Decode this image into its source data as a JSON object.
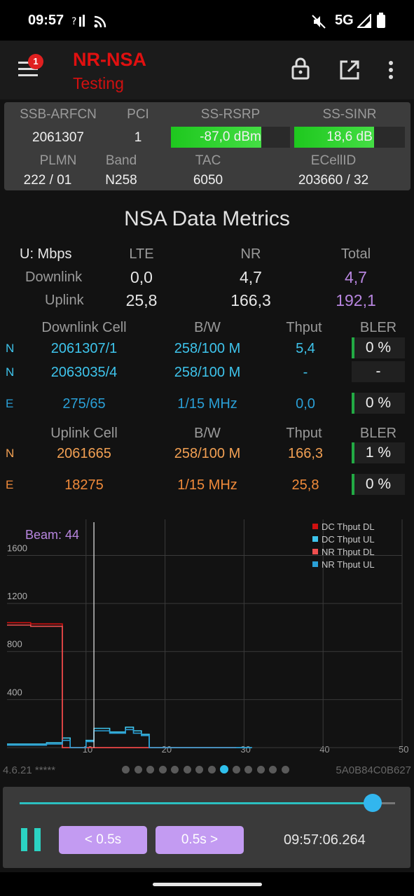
{
  "status_bar": {
    "time": "09:57",
    "network": "5G",
    "icons": [
      "signal-question-icon",
      "cast-icon",
      "mute-icon",
      "cell-signal-icon",
      "battery-icon"
    ]
  },
  "app_bar": {
    "title": "NR-NSA",
    "subtitle": "Testing",
    "menu_badge": "1",
    "icons": [
      "menu-icon",
      "lock-icon",
      "open-external-icon",
      "more-vert-icon"
    ]
  },
  "cell_info": {
    "labels": {
      "ssb_arfcn": "SSB-ARFCN",
      "pci": "PCI",
      "ss_rsrp": "SS-RSRP",
      "ss_sinr": "SS-SINR",
      "plmn": "PLMN",
      "band": "Band",
      "tac": "TAC",
      "ecellid": "ECellID"
    },
    "values": {
      "ssb_arfcn": "2061307",
      "pci": "1",
      "ss_rsrp": "-87,0 dBm",
      "ss_sinr": "18,6 dB",
      "plmn": "222 / 01",
      "band": "N258",
      "tac": "6050",
      "ecellid": "203660 / 32"
    },
    "rsrp_level": 0.76,
    "sinr_level": 0.72
  },
  "metrics": {
    "title": "NSA Data Metrics",
    "unit_label": "U: Mbps",
    "headers": [
      "LTE",
      "NR",
      "Total"
    ],
    "downlink": {
      "label": "Downlink",
      "lte": "0,0",
      "nr": "4,7",
      "total": "4,7"
    },
    "uplink": {
      "label": "Uplink",
      "lte": "25,8",
      "nr": "166,3",
      "total": "192,1"
    }
  },
  "downlink_cells": {
    "headers": [
      "Downlink Cell",
      "B/W",
      "Thput",
      "BLER"
    ],
    "rows": [
      {
        "type": "N",
        "cell": "2061307/1",
        "bw": "258/100 M",
        "thput": "5,4",
        "bler": "0 %"
      },
      {
        "type": "N",
        "cell": "2063035/4",
        "bw": "258/100 M",
        "thput": "-",
        "bler": "-"
      },
      {
        "type": "E",
        "cell": "275/65",
        "bw": "1/15 MHz",
        "thput": "0,0",
        "bler": "0 %"
      }
    ]
  },
  "uplink_cells": {
    "headers": [
      "Uplink Cell",
      "B/W",
      "Thput",
      "BLER"
    ],
    "rows": [
      {
        "type": "N",
        "cell": "2061665",
        "bw": "258/100 M",
        "thput": "166,3",
        "bler": "1 %"
      },
      {
        "type": "E",
        "cell": "18275",
        "bw": "1/15 MHz",
        "thput": "25,8",
        "bler": "0 %"
      }
    ]
  },
  "chart_data": {
    "type": "line",
    "annotation": "Beam: 44",
    "beam_marker_x": 11,
    "xlim": [
      0,
      50
    ],
    "ylim": [
      0,
      1900
    ],
    "x_ticks": [
      "10",
      "20",
      "30",
      "40",
      "50"
    ],
    "y_ticks": [
      "400",
      "800",
      "1200",
      "1600"
    ],
    "grid": true,
    "legend_position": "top-right",
    "series": [
      {
        "name": "DC Thput DL",
        "color": "#d01010",
        "points": [
          [
            0,
            1040
          ],
          [
            3,
            1040
          ],
          [
            3,
            1030
          ],
          [
            7,
            1030
          ],
          [
            7,
            0
          ],
          [
            29,
            0
          ]
        ]
      },
      {
        "name": "DC Thput UL",
        "color": "#3ec4ec",
        "points": [
          [
            0,
            30
          ],
          [
            5,
            30
          ],
          [
            5,
            40
          ],
          [
            7,
            40
          ],
          [
            7,
            80
          ],
          [
            8,
            80
          ],
          [
            8,
            0
          ],
          [
            10,
            0
          ],
          [
            10,
            60
          ],
          [
            11,
            60
          ],
          [
            11,
            160
          ],
          [
            13,
            160
          ],
          [
            13,
            130
          ],
          [
            15,
            130
          ],
          [
            15,
            170
          ],
          [
            16,
            170
          ],
          [
            16,
            140
          ],
          [
            17,
            140
          ],
          [
            17,
            110
          ],
          [
            18,
            110
          ],
          [
            18,
            0
          ],
          [
            31,
            0
          ]
        ]
      },
      {
        "name": "NR Thput DL",
        "color": "#f05050",
        "points": [
          [
            0,
            1020
          ],
          [
            3,
            1020
          ],
          [
            3,
            1010
          ],
          [
            7,
            1010
          ],
          [
            7,
            0
          ],
          [
            29,
            0
          ]
        ]
      },
      {
        "name": "NR Thput UL",
        "color": "#2a9fd6",
        "points": [
          [
            0,
            20
          ],
          [
            5,
            20
          ],
          [
            5,
            30
          ],
          [
            7,
            30
          ],
          [
            7,
            60
          ],
          [
            8,
            60
          ],
          [
            8,
            0
          ],
          [
            10,
            0
          ],
          [
            10,
            50
          ],
          [
            11,
            50
          ],
          [
            11,
            140
          ],
          [
            13,
            140
          ],
          [
            13,
            120
          ],
          [
            15,
            120
          ],
          [
            15,
            150
          ],
          [
            16,
            150
          ],
          [
            16,
            120
          ],
          [
            17,
            120
          ],
          [
            17,
            100
          ],
          [
            18,
            100
          ],
          [
            18,
            0
          ],
          [
            31,
            0
          ]
        ]
      }
    ]
  },
  "footer": {
    "version": "4.6.21 *****",
    "device_id": "5A0B84C0B627",
    "page_count": 14,
    "active_page": 8
  },
  "playback": {
    "position": 0.94,
    "back_label": "< 0.5s",
    "forward_label": "0.5s >",
    "timestamp": "09:57:06.264"
  }
}
